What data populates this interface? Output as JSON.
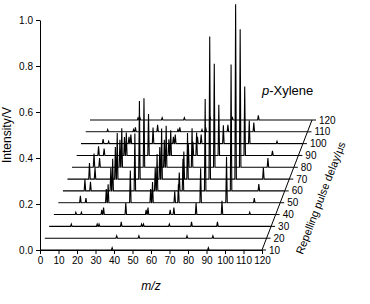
{
  "chart_data": {
    "type": "line",
    "title": "p-Xylene",
    "x_label": "m/z",
    "y_label": "Intensity/V",
    "z_label": "Repelling pulse delay/μs",
    "color": "#000000",
    "xlim": [
      0,
      120
    ],
    "xticks": [
      0,
      10,
      20,
      30,
      40,
      50,
      60,
      70,
      80,
      90,
      100,
      110,
      120
    ],
    "ylim": [
      0,
      1
    ],
    "yticks": [
      {
        "value": 0,
        "label": "0.0"
      },
      {
        "value": 0.2,
        "label": "0.2"
      },
      {
        "value": 0.4,
        "label": "0.4"
      },
      {
        "value": 0.6,
        "label": "0.6"
      },
      {
        "value": 0.8,
        "label": "0.8"
      },
      {
        "value": 1,
        "label": "1.0"
      }
    ],
    "zlim": [
      10,
      120
    ],
    "zticks": [
      10,
      20,
      30,
      40,
      50,
      60,
      70,
      80,
      90,
      100,
      110,
      120
    ],
    "x": [
      0,
      11.6,
      12,
      12.4,
      14.6,
      15,
      15.4,
      25.6,
      26,
      26.4,
      26.6,
      27,
      27.4,
      38.6,
      39,
      39.4,
      49.6,
      50,
      50.4,
      50.6,
      51,
      51.4,
      62.6,
      63,
      63.4,
      64.6,
      65,
      65.4,
      76.6,
      77,
      77.4,
      90.6,
      91,
      91.4,
      105.6,
      106,
      106.4,
      120
    ],
    "series": [
      {
        "z": 10,
        "values": [
          0,
          0,
          0,
          0,
          0,
          0,
          0,
          0,
          0,
          0,
          0,
          0,
          0,
          0,
          0.01,
          0,
          0,
          0,
          0,
          0,
          0,
          0,
          0,
          0,
          0,
          0,
          0,
          0,
          0,
          0,
          0,
          0,
          0.01,
          0,
          0,
          0,
          0,
          0
        ]
      },
      {
        "z": 20,
        "values": [
          0,
          0,
          0,
          0,
          0,
          0,
          0,
          0,
          0,
          0,
          0,
          0,
          0,
          0,
          0.01,
          0,
          0,
          0,
          0,
          0,
          0.01,
          0,
          0,
          0,
          0,
          0,
          0,
          0,
          0,
          0.01,
          0,
          0,
          0.01,
          0,
          0,
          0,
          0,
          0
        ]
      },
      {
        "z": 30,
        "values": [
          0,
          0,
          0.01,
          0,
          0,
          0,
          0,
          0,
          0.01,
          0,
          0,
          0.01,
          0,
          0,
          0.02,
          0,
          0,
          0.01,
          0,
          0,
          0.01,
          0,
          0,
          0,
          0,
          0,
          0.01,
          0,
          0,
          0.02,
          0,
          0,
          0.02,
          0,
          0,
          0,
          0,
          0
        ]
      },
      {
        "z": 40,
        "values": [
          0,
          0,
          0.01,
          0,
          0,
          0.01,
          0,
          0,
          0.02,
          0,
          0,
          0.03,
          0,
          0,
          0.05,
          0,
          0,
          0.02,
          0,
          0,
          0.03,
          0,
          0,
          0.02,
          0,
          0,
          0.03,
          0,
          0,
          0.05,
          0,
          0,
          0.06,
          0,
          0,
          0.01,
          0,
          0
        ]
      },
      {
        "z": 50,
        "values": [
          0,
          0,
          0.03,
          0,
          0,
          0.02,
          0,
          0,
          0.06,
          0,
          0,
          0.08,
          0,
          0,
          0.14,
          0,
          0,
          0.06,
          0,
          0,
          0.09,
          0,
          0,
          0.05,
          0,
          0,
          0.08,
          0,
          0,
          0.15,
          0,
          0,
          0.2,
          0,
          0,
          0.02,
          0,
          0
        ]
      },
      {
        "z": 60,
        "values": [
          0,
          0,
          0.05,
          0,
          0,
          0.04,
          0,
          0,
          0.1,
          0,
          0,
          0.14,
          0,
          0,
          0.25,
          0,
          0,
          0.1,
          0,
          0,
          0.16,
          0,
          0,
          0.08,
          0,
          0,
          0.14,
          0,
          0,
          0.4,
          0,
          0,
          0.55,
          0,
          0,
          0.03,
          0,
          0
        ]
      },
      {
        "z": 70,
        "values": [
          0,
          0,
          0.07,
          0,
          0,
          0.05,
          0,
          0,
          0.14,
          0,
          0,
          0.2,
          0,
          0,
          0.34,
          0,
          0,
          0.14,
          0,
          0,
          0.22,
          0,
          0,
          0.12,
          0,
          0,
          0.2,
          0,
          0,
          0.62,
          0,
          0,
          0.76,
          0,
          0,
          0.05,
          0,
          0
        ]
      },
      {
        "z": 80,
        "values": [
          0,
          0,
          0.06,
          0,
          0,
          0.04,
          0,
          0,
          0.12,
          0,
          0,
          0.17,
          0,
          0,
          0.3,
          0,
          0,
          0.12,
          0,
          0,
          0.18,
          0,
          0,
          0.1,
          0,
          0,
          0.17,
          0,
          0,
          0.45,
          0,
          0,
          0.6,
          0,
          0,
          0.04,
          0,
          0
        ]
      },
      {
        "z": 90,
        "values": [
          0,
          0,
          0.04,
          0,
          0,
          0.03,
          0,
          0,
          0.08,
          0,
          0,
          0.1,
          0,
          0,
          0.18,
          0,
          0,
          0.07,
          0,
          0,
          0.11,
          0,
          0,
          0.06,
          0,
          0,
          0.1,
          0,
          0,
          0.22,
          0,
          0,
          0.3,
          0,
          0,
          0.02,
          0,
          0
        ]
      },
      {
        "z": 100,
        "values": [
          0,
          0,
          0.02,
          0,
          0,
          0.01,
          0,
          0,
          0.03,
          0,
          0,
          0.04,
          0,
          0,
          0.07,
          0,
          0,
          0.03,
          0,
          0,
          0.04,
          0,
          0,
          0.03,
          0,
          0,
          0.04,
          0,
          0,
          0.08,
          0,
          0,
          0.1,
          0,
          0,
          0.01,
          0,
          0
        ]
      },
      {
        "z": 110,
        "values": [
          0,
          0,
          0.01,
          0,
          0,
          0,
          0,
          0,
          0.01,
          0,
          0,
          0.02,
          0,
          0,
          0.03,
          0,
          0,
          0.01,
          0,
          0,
          0.02,
          0,
          0,
          0.01,
          0,
          0,
          0.02,
          0,
          0,
          0.03,
          0,
          0,
          0.04,
          0,
          0,
          0,
          0,
          0
        ]
      },
      {
        "z": 120,
        "values": [
          0,
          0,
          0,
          0,
          0,
          0,
          0,
          0,
          0.01,
          0,
          0,
          0.01,
          0,
          0,
          0.01,
          0,
          0,
          0,
          0,
          0,
          0.01,
          0,
          0,
          0,
          0,
          0,
          0.01,
          0,
          0,
          0.01,
          0,
          0,
          0.02,
          0,
          0,
          0,
          0,
          0
        ]
      }
    ]
  }
}
